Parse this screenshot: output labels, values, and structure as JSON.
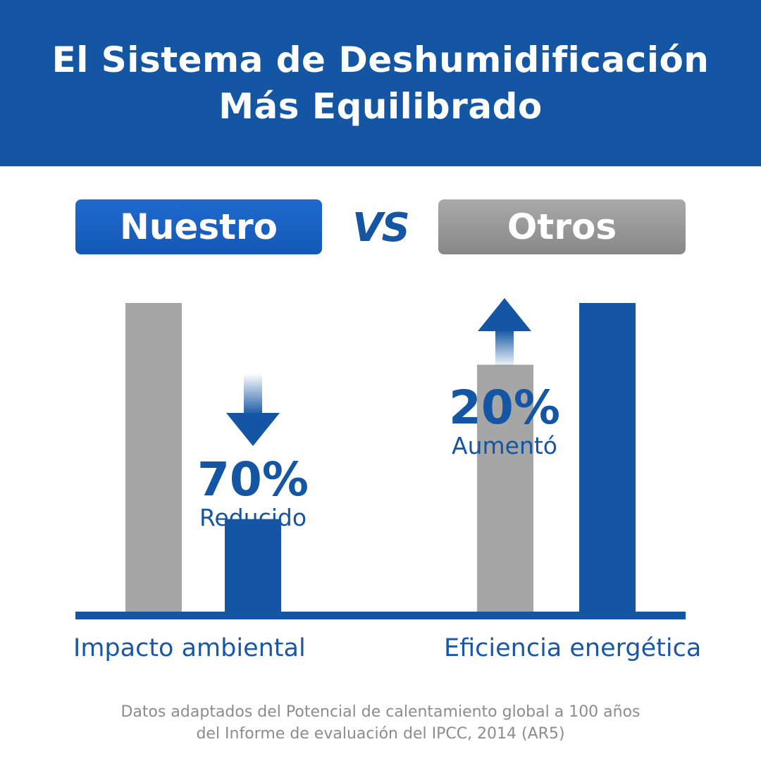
{
  "header": {
    "title_line1": "El Sistema de Deshumidificación",
    "title_line2": "Más Equilibrado"
  },
  "comparison": {
    "ours_label": "Nuestro",
    "vs_label": "VS",
    "others_label": "Otros"
  },
  "colors": {
    "brand_blue": "#1456a3",
    "bar_blue": "#1456a3",
    "bar_gray": "#a6a6a6",
    "footnote_gray": "#8c8c8c"
  },
  "chart_data": {
    "type": "bar",
    "categories": [
      "Impacto ambiental",
      "Eficiencia energética"
    ],
    "series": [
      {
        "name": "Nuestro",
        "values": [
          30,
          100
        ]
      },
      {
        "name": "Otros",
        "values": [
          100,
          80
        ]
      }
    ],
    "ylim": [
      0,
      100
    ],
    "grid": false,
    "annotations": [
      {
        "category": "Impacto ambiental",
        "value": "70%",
        "text": "Reducido",
        "direction": "down"
      },
      {
        "category": "Eficiencia energética",
        "value": "20%",
        "text": "Aumentó",
        "direction": "up"
      }
    ]
  },
  "footnote": {
    "line1": "Datos adaptados del Potencial de calentamiento global a 100 años",
    "line2": "del Informe de evaluación del IPCC, 2014 (AR5)"
  }
}
